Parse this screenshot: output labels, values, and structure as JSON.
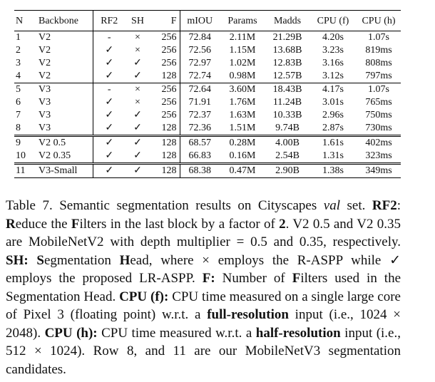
{
  "table": {
    "headers": {
      "n": "N",
      "backbone": "Backbone",
      "rf2": "RF2",
      "sh": "SH",
      "f": "F",
      "miou": "mIOU",
      "params": "Params",
      "madds": "Madds",
      "cpu_f": "CPU (f)",
      "cpu_h": "CPU (h)"
    },
    "rows": [
      {
        "n": "1",
        "backbone": "V2",
        "rf2": "-",
        "sh": "×",
        "f": "256",
        "miou": "72.84",
        "params": "2.11M",
        "madds": "21.29B",
        "cpu_f": "4.20s",
        "cpu_h": "1.07s"
      },
      {
        "n": "2",
        "backbone": "V2",
        "rf2": "✓",
        "sh": "×",
        "f": "256",
        "miou": "72.56",
        "params": "1.15M",
        "madds": "13.68B",
        "cpu_f": "3.23s",
        "cpu_h": "819ms"
      },
      {
        "n": "3",
        "backbone": "V2",
        "rf2": "✓",
        "sh": "✓",
        "f": "256",
        "miou": "72.97",
        "params": "1.02M",
        "madds": "12.83B",
        "cpu_f": "3.16s",
        "cpu_h": "808ms"
      },
      {
        "n": "4",
        "backbone": "V2",
        "rf2": "✓",
        "sh": "✓",
        "f": "128",
        "miou": "72.74",
        "params": "0.98M",
        "madds": "12.57B",
        "cpu_f": "3.12s",
        "cpu_h": "797ms"
      },
      {
        "n": "5",
        "backbone": "V3",
        "rf2": "-",
        "sh": "×",
        "f": "256",
        "miou": "72.64",
        "params": "3.60M",
        "madds": "18.43B",
        "cpu_f": "4.17s",
        "cpu_h": "1.07s"
      },
      {
        "n": "6",
        "backbone": "V3",
        "rf2": "✓",
        "sh": "×",
        "f": "256",
        "miou": "71.91",
        "params": "1.76M",
        "madds": "11.24B",
        "cpu_f": "3.01s",
        "cpu_h": "765ms"
      },
      {
        "n": "7",
        "backbone": "V3",
        "rf2": "✓",
        "sh": "✓",
        "f": "256",
        "miou": "72.37",
        "params": "1.63M",
        "madds": "10.33B",
        "cpu_f": "2.96s",
        "cpu_h": "750ms"
      },
      {
        "n": "8",
        "backbone": "V3",
        "rf2": "✓",
        "sh": "✓",
        "f": "128",
        "miou": "72.36",
        "params": "1.51M",
        "madds": "9.74B",
        "cpu_f": "2.87s",
        "cpu_h": "730ms"
      },
      {
        "n": "9",
        "backbone": "V2 0.5",
        "rf2": "✓",
        "sh": "✓",
        "f": "128",
        "miou": "68.57",
        "params": "0.28M",
        "madds": "4.00B",
        "cpu_f": "1.61s",
        "cpu_h": "402ms"
      },
      {
        "n": "10",
        "backbone": "V2 0.35",
        "rf2": "✓",
        "sh": "✓",
        "f": "128",
        "miou": "66.83",
        "params": "0.16M",
        "madds": "2.54B",
        "cpu_f": "1.31s",
        "cpu_h": "323ms"
      },
      {
        "n": "11",
        "backbone": "V3-Small",
        "rf2": "✓",
        "sh": "✓",
        "f": "128",
        "miou": "68.38",
        "params": "0.47M",
        "madds": "2.90B",
        "cpu_f": "1.38s",
        "cpu_h": "349ms"
      }
    ]
  },
  "caption": {
    "p01": "Table 7. Semantic segmentation results on Cityscapes ",
    "p02": "val",
    "p03": " set. ",
    "p04": "RF2",
    "p05": ": ",
    "p06": "R",
    "p07": "educe the ",
    "p08": "F",
    "p09": "ilters in the last block by a factor of ",
    "p10": "2",
    "p11": ". V2 0.5 and V2 0.35 are MobileNetV2 with depth multiplier = 0.5 and 0.35, respectively. ",
    "p12": "SH:",
    "p13": " ",
    "p14": "S",
    "p15": "egmentation ",
    "p16": "H",
    "p17": "ead, where × employs the R-ASPP while ✓ employs the proposed LR-ASPP. ",
    "p18": "F:",
    "p19": " Number of ",
    "p20": "F",
    "p21": "ilters used in the Segmentation Head. ",
    "p22": "CPU (f):",
    "p23": " CPU time measured on a single large core of Pixel 3 (floating point) w.r.t. a ",
    "p24": "full-resolution",
    "p25": " input (i.e., 1024 × 2048). ",
    "p26": "CPU (h):",
    "p27": " CPU time measured w.r.t. a ",
    "p28": "half-resolution",
    "p29": " input (i.e., 512 × 1024). Row 8, and 11 are our MobileNetV3 segmentation candidates."
  }
}
